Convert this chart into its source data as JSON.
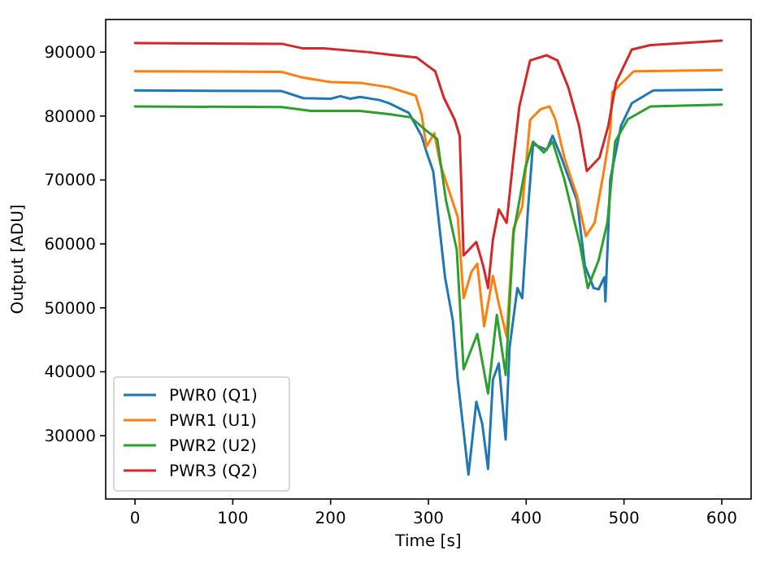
{
  "chart_data": {
    "type": "line",
    "xlabel": "Time [s]",
    "ylabel": "Output [ADU]",
    "xlim": [
      -30,
      630
    ],
    "ylim": [
      20100,
      95100
    ],
    "xticks": [
      0,
      100,
      200,
      300,
      400,
      500,
      600
    ],
    "yticks": [
      30000,
      40000,
      50000,
      60000,
      70000,
      80000,
      90000
    ],
    "legend": "bottom left",
    "grid": false,
    "series": [
      {
        "name": "PWR0 (Q1)",
        "color": "#1f77b4",
        "x": [
          0,
          150,
          172,
          200,
          210,
          220,
          230,
          250,
          260,
          280,
          293,
          298,
          305,
          309,
          317,
          325,
          330,
          341,
          349,
          355,
          361,
          366,
          372,
          379,
          383,
          391,
          396,
          402,
          407,
          421,
          427,
          435,
          452,
          460,
          469,
          474,
          480,
          481,
          486,
          497,
          508,
          530,
          600
        ],
        "values": [
          84000,
          83900,
          82800,
          82700,
          83100,
          82700,
          83000,
          82500,
          82000,
          80500,
          76900,
          74400,
          71300,
          65800,
          54800,
          48000,
          38800,
          23900,
          35300,
          31900,
          24800,
          38800,
          41300,
          29400,
          43800,
          53100,
          51500,
          65800,
          75600,
          74700,
          76900,
          73900,
          66800,
          56600,
          53100,
          52900,
          54800,
          51000,
          70100,
          78500,
          82000,
          84000,
          84100
        ]
      },
      {
        "name": "PWR1 (U1)",
        "color": "#ff7f0e",
        "x": [
          0,
          150,
          172,
          200,
          230,
          260,
          287,
          293,
          298,
          306,
          312,
          320,
          330,
          336,
          344,
          350,
          357,
          366,
          372,
          380,
          387,
          396,
          404,
          415,
          424,
          430,
          439,
          452,
          461,
          470,
          480,
          486,
          488,
          510,
          600
        ],
        "values": [
          87000,
          86900,
          86000,
          85300,
          85200,
          84500,
          83200,
          80300,
          75200,
          77300,
          72600,
          68800,
          64200,
          51500,
          55600,
          56900,
          47100,
          55000,
          50600,
          45500,
          62400,
          65800,
          79400,
          81100,
          81500,
          79400,
          73500,
          67500,
          61200,
          63300,
          71900,
          77700,
          83700,
          87000,
          87200
        ]
      },
      {
        "name": "PWR2 (U2)",
        "color": "#2ca02c",
        "x": [
          0,
          150,
          180,
          230,
          260,
          282,
          298,
          309,
          318,
          329,
          336,
          350,
          361,
          370,
          379,
          387,
          399,
          407,
          418,
          427,
          439,
          455,
          463,
          474,
          483,
          491,
          504,
          527,
          600
        ],
        "values": [
          81500,
          81400,
          80800,
          80800,
          80300,
          79800,
          77700,
          76400,
          66800,
          59100,
          40400,
          45900,
          36600,
          48900,
          39500,
          61600,
          71800,
          76000,
          74300,
          76000,
          70100,
          59900,
          53100,
          57400,
          63300,
          76000,
          79500,
          81500,
          81800
        ]
      },
      {
        "name": "PWR3 (Q2)",
        "color": "#d62728",
        "x": [
          0,
          150,
          171,
          193,
          238,
          260,
          288,
          299,
          307,
          316,
          327,
          332,
          336,
          349,
          356,
          361,
          366,
          372,
          380,
          387,
          393,
          404,
          421,
          432,
          443,
          454,
          462,
          475,
          484,
          492,
          508,
          527,
          600
        ],
        "values": [
          91400,
          91300,
          90600,
          90600,
          90000,
          89600,
          89150,
          87900,
          87000,
          82800,
          79400,
          76900,
          58200,
          60300,
          56600,
          53100,
          60700,
          65400,
          63300,
          73500,
          81500,
          88700,
          89500,
          88700,
          84500,
          78500,
          71400,
          73500,
          78500,
          85300,
          90400,
          91100,
          91800
        ]
      }
    ]
  }
}
